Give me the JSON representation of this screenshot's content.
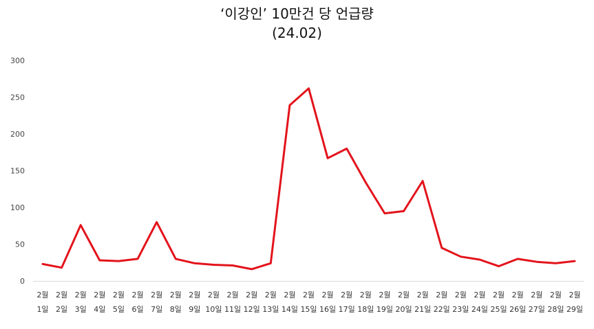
{
  "chart_data": {
    "type": "line",
    "title": "‘이강인’ 10만건 당 언급량",
    "subtitle": "(24.02)",
    "categories": [
      [
        "2월",
        "1일"
      ],
      [
        "2월",
        "2일"
      ],
      [
        "2월",
        "3일"
      ],
      [
        "2월",
        "4일"
      ],
      [
        "2월",
        "5일"
      ],
      [
        "2월",
        "6일"
      ],
      [
        "2월",
        "7일"
      ],
      [
        "2월",
        "8일"
      ],
      [
        "2월",
        "9일"
      ],
      [
        "2월",
        "10일"
      ],
      [
        "2월",
        "11일"
      ],
      [
        "2월",
        "12일"
      ],
      [
        "2월",
        "13일"
      ],
      [
        "2월",
        "14일"
      ],
      [
        "2월",
        "15일"
      ],
      [
        "2월",
        "16일"
      ],
      [
        "2월",
        "17일"
      ],
      [
        "2월",
        "18일"
      ],
      [
        "2월",
        "19일"
      ],
      [
        "2월",
        "20일"
      ],
      [
        "2월",
        "21일"
      ],
      [
        "2월",
        "22일"
      ],
      [
        "2월",
        "23일"
      ],
      [
        "2월",
        "24일"
      ],
      [
        "2월",
        "25일"
      ],
      [
        "2월",
        "26일"
      ],
      [
        "2월",
        "27일"
      ],
      [
        "2월",
        "28일"
      ],
      [
        "2월",
        "29일"
      ]
    ],
    "values": [
      23,
      18,
      76,
      28,
      27,
      30,
      80,
      30,
      24,
      22,
      21,
      16,
      24,
      239,
      262,
      167,
      180,
      134,
      92,
      95,
      136,
      45,
      33,
      29,
      20,
      30,
      26,
      24,
      27
    ],
    "ylim": [
      0,
      300
    ],
    "yticks": [
      0,
      50,
      100,
      150,
      200,
      250,
      300
    ],
    "line_color": "#e3131b",
    "grid": false,
    "legend": "none"
  }
}
